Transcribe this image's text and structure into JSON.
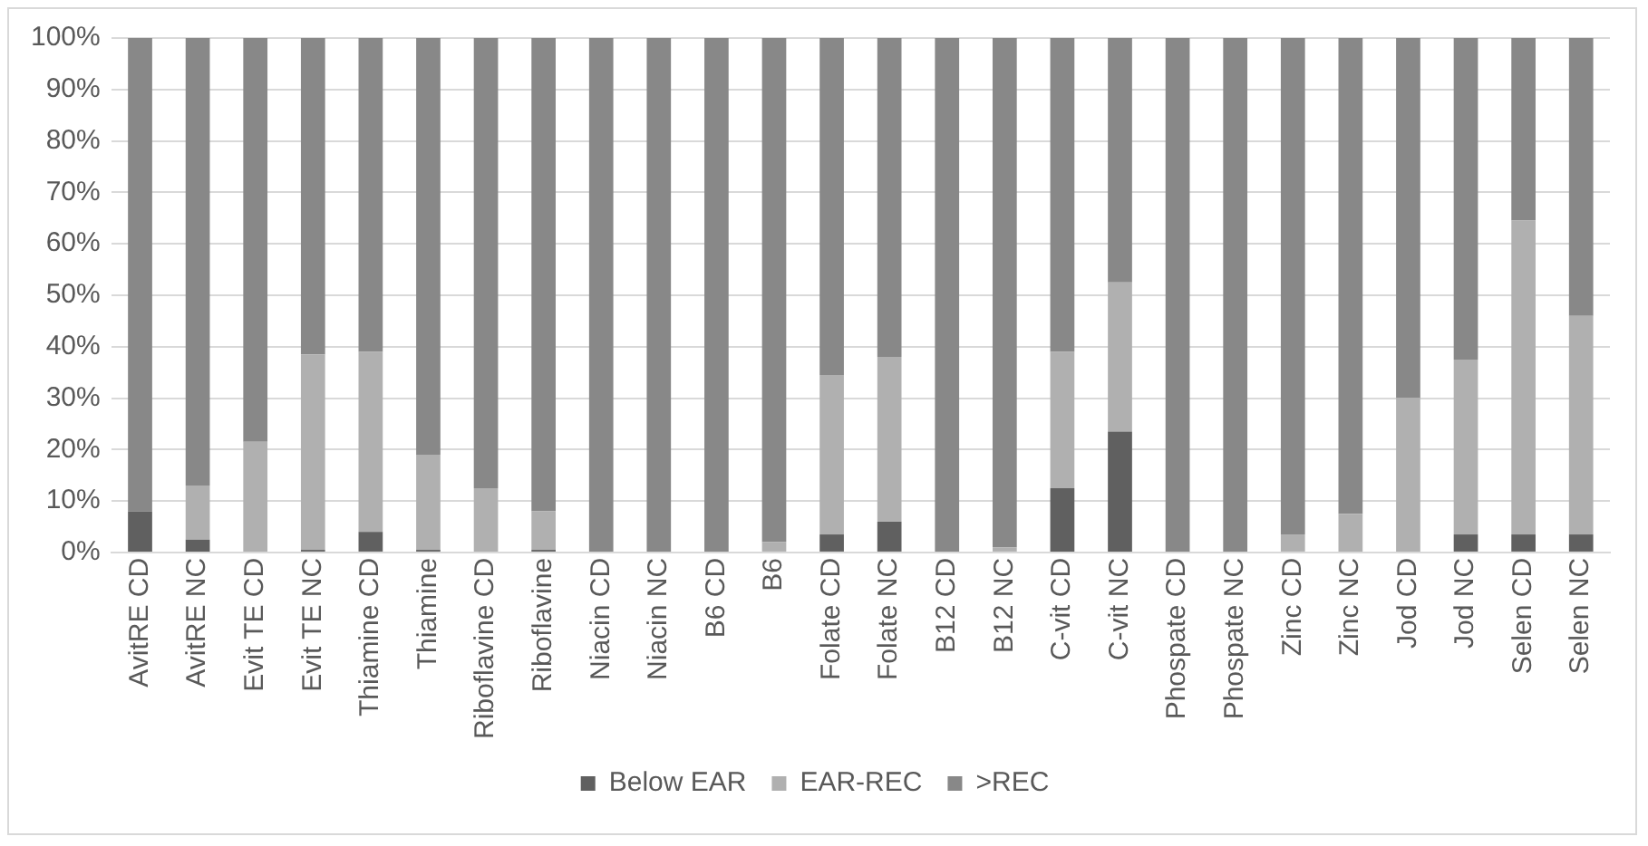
{
  "chart_data": {
    "type": "bar",
    "stacked": true,
    "categories": [
      "AvitRE CD",
      "AvitRE NC",
      "Evit TE CD",
      "Evit TE NC",
      "Thiamine CD",
      "Thiamine",
      "Riboflavine CD",
      "Riboflavine",
      "Niacin CD",
      "Niacin NC",
      "B6 CD",
      "B6",
      "Folate CD",
      "Folate NC",
      "B12 CD",
      "B12 NC",
      "C-vit CD",
      "C-vit NC",
      "Phospate CD",
      "Phospate NC",
      "Zinc CD",
      "Zinc NC",
      "Jod CD",
      "Jod NC",
      "Selen CD",
      "Selen NC"
    ],
    "series": [
      {
        "name": "Below EAR",
        "color": "#606060",
        "values": [
          8,
          2.5,
          0,
          0.5,
          4,
          0.5,
          0,
          0.5,
          0,
          0,
          0,
          0,
          3.5,
          6,
          0,
          0,
          12.5,
          23.5,
          0,
          0,
          0,
          0,
          0,
          3.5,
          3.5,
          3.5
        ]
      },
      {
        "name": "EAR-REC",
        "color": "#b0b0b0",
        "values": [
          0,
          10.5,
          21.5,
          38,
          35,
          18.5,
          12.5,
          7.5,
          0,
          0,
          0,
          2,
          31,
          32,
          0,
          1,
          26.5,
          29,
          0,
          0,
          3.5,
          7.5,
          30,
          34,
          61,
          42.5
        ]
      },
      {
        "name": ">REC",
        "color": "#888888",
        "values": [
          92,
          87,
          78.5,
          61.5,
          61,
          81,
          87.5,
          92,
          100,
          100,
          100,
          98,
          65.5,
          62,
          100,
          99,
          61,
          47.5,
          100,
          100,
          96.5,
          92.5,
          70,
          62.5,
          35.5,
          54
        ]
      }
    ],
    "ylim": [
      0,
      100
    ],
    "yticks": [
      {
        "value": 0,
        "label": "0%"
      },
      {
        "value": 10,
        "label": "10%"
      },
      {
        "value": 20,
        "label": "20%"
      },
      {
        "value": 30,
        "label": "30%"
      },
      {
        "value": 40,
        "label": "40%"
      },
      {
        "value": 50,
        "label": "50%"
      },
      {
        "value": 60,
        "label": "60%"
      },
      {
        "value": 70,
        "label": "70%"
      },
      {
        "value": 80,
        "label": "80%"
      },
      {
        "value": 90,
        "label": "90%"
      },
      {
        "value": 100,
        "label": "100%"
      }
    ],
    "grid": "y",
    "legend": "bottom"
  }
}
